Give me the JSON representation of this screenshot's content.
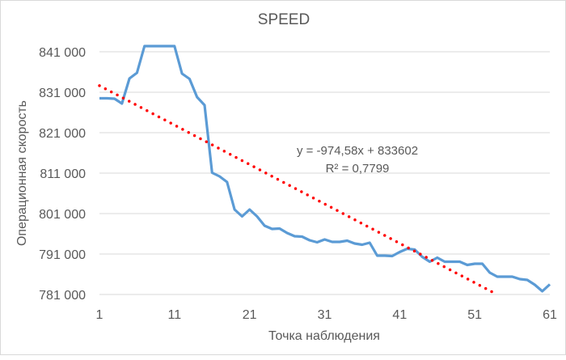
{
  "chart_data": {
    "type": "line",
    "title": "SPEED",
    "xlabel": "Точка наблюдения",
    "ylabel": "Операционная скорость",
    "xlim": [
      1,
      61
    ],
    "ylim": [
      781000,
      841000
    ],
    "x_ticks": [
      1,
      11,
      21,
      31,
      41,
      51,
      61
    ],
    "y_ticks": [
      781000,
      791000,
      801000,
      811000,
      821000,
      831000,
      841000
    ],
    "y_tick_labels": [
      "781 000",
      "791 000",
      "801 000",
      "811 000",
      "821 000",
      "831 000",
      "841 000"
    ],
    "x_tick_labels": [
      "1",
      "11",
      "21",
      "31",
      "41",
      "51",
      "61"
    ],
    "grid": "horizontal",
    "series": [
      {
        "name": "SPEED",
        "color": "#5b9bd5",
        "x": [
          1,
          2,
          3,
          4,
          5,
          6,
          7,
          8,
          9,
          10,
          11,
          12,
          13,
          14,
          15,
          16,
          17,
          18,
          19,
          20,
          21,
          22,
          23,
          24,
          25,
          26,
          27,
          28,
          29,
          30,
          31,
          32,
          33,
          34,
          35,
          36,
          37,
          38,
          39,
          40,
          41,
          42,
          43,
          44,
          45,
          46,
          47,
          48,
          49,
          50,
          51,
          52,
          53,
          54,
          55,
          56,
          57,
          58,
          59,
          60,
          61
        ],
        "values": [
          829500,
          829500,
          829400,
          828200,
          834400,
          835800,
          842400,
          842400,
          842400,
          842400,
          842400,
          835600,
          834300,
          829800,
          827800,
          811100,
          810200,
          808800,
          802000,
          800300,
          802000,
          800300,
          798000,
          797200,
          797300,
          796200,
          795400,
          795300,
          794400,
          793900,
          794600,
          794000,
          794000,
          794300,
          793600,
          793300,
          793800,
          790600,
          790600,
          790500,
          791500,
          792300,
          792100,
          790300,
          789100,
          790100,
          789100,
          789100,
          789100,
          788300,
          788600,
          788600,
          786400,
          785400,
          785400,
          785400,
          784800,
          784600,
          783400,
          781800,
          783500
        ]
      }
    ],
    "trendline": {
      "type": "linear",
      "color": "#ff0000",
      "slope": -974.58,
      "intercept": 833602,
      "x_range": [
        1,
        53.8
      ],
      "equation_label": "y = -974,58x + 833602",
      "r2_label": "R² = 0,7799"
    }
  }
}
